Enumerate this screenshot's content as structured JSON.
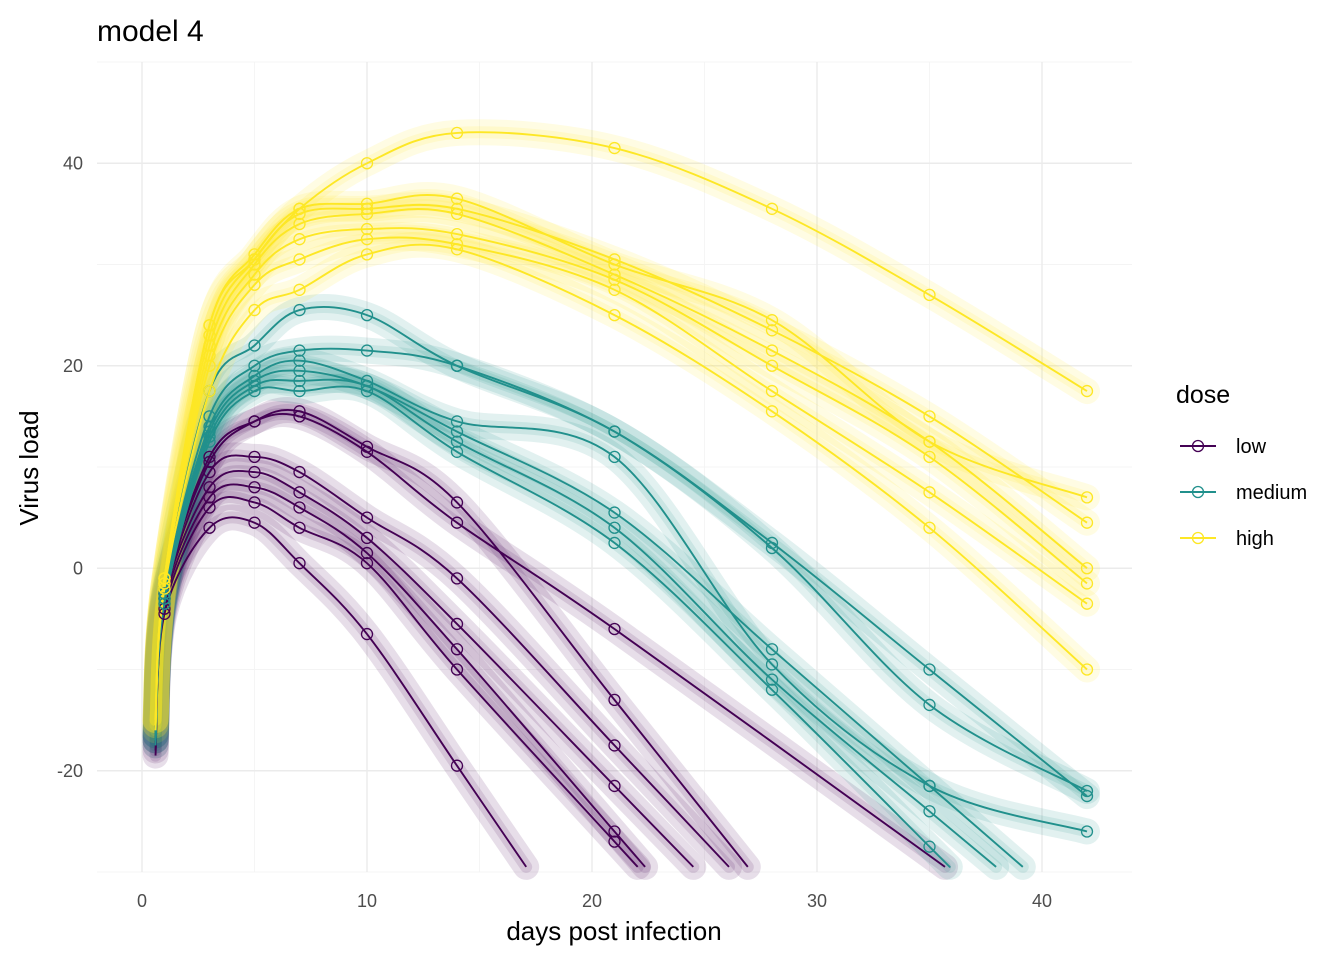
{
  "chart_data": {
    "type": "line",
    "title": "model 4",
    "xlabel": "days post infection",
    "ylabel": "Virus load",
    "xlim": [
      -2,
      44
    ],
    "ylim": [
      -30,
      50
    ],
    "x_ticks": [
      0,
      10,
      20,
      30,
      40
    ],
    "x_tick_labels": [
      "0",
      "10",
      "20",
      "30",
      "40"
    ],
    "y_ticks": [
      -20,
      0,
      20,
      40
    ],
    "y_tick_labels": [
      "-20",
      "0",
      "20",
      "40"
    ],
    "grid": true,
    "legend": {
      "title": "dose",
      "placement": "right"
    },
    "observation_days": [
      1,
      3,
      5,
      7,
      10,
      14,
      21,
      28,
      35,
      42
    ],
    "series": [
      {
        "name": "low",
        "color": "#440154",
        "curves": [
          {
            "values": [
              -4.5,
              4.0,
              4.5,
              0.5,
              -6.5,
              -19.5,
              null,
              null,
              null,
              null
            ]
          },
          {
            "values": [
              -4.0,
              6.0,
              6.5,
              4.0,
              0.5,
              -10.0,
              -27.0,
              null,
              null,
              null
            ]
          },
          {
            "values": [
              -3.5,
              7.0,
              8.0,
              6.0,
              1.5,
              -8.0,
              -26.0,
              null,
              null,
              null
            ]
          },
          {
            "values": [
              -3.0,
              8.0,
              9.5,
              7.5,
              3.0,
              -5.5,
              -21.5,
              null,
              null,
              null
            ]
          },
          {
            "values": [
              -3.0,
              9.5,
              11.0,
              9.5,
              5.0,
              -1.0,
              -17.5,
              null,
              null,
              null
            ]
          },
          {
            "values": [
              -2.5,
              10.5,
              14.5,
              15.5,
              12.0,
              6.5,
              -13.0,
              null,
              null,
              null
            ]
          },
          {
            "values": [
              -2.5,
              11.0,
              14.5,
              15.0,
              11.5,
              4.5,
              -6.0,
              null,
              null,
              null
            ]
          }
        ]
      },
      {
        "name": "medium",
        "color": "#21908C",
        "curves": [
          {
            "values": [
              -3.5,
              12.5,
              17.5,
              17.5,
              17.5,
              11.5,
              2.5,
              -12.0,
              -27.5,
              null
            ]
          },
          {
            "values": [
              -3.0,
              13.0,
              18.0,
              18.5,
              18.0,
              12.5,
              4.0,
              -11.0,
              -24.0,
              null
            ]
          },
          {
            "values": [
              -3.0,
              13.5,
              18.5,
              19.5,
              18.0,
              13.5,
              5.5,
              -8.0,
              -21.5,
              null
            ]
          },
          {
            "values": [
              -2.5,
              14.0,
              19.0,
              20.5,
              18.5,
              14.5,
              11.0,
              -9.5,
              -21.5,
              -26.0
            ]
          },
          {
            "values": [
              -2.5,
              15.0,
              20.0,
              21.5,
              21.5,
              20.0,
              13.5,
              2.5,
              -10.0,
              -22.5
            ]
          },
          {
            "values": [
              -2.0,
              17.5,
              22.0,
              25.5,
              25.0,
              20.0,
              13.5,
              2.0,
              -13.5,
              -22.0
            ]
          }
        ]
      },
      {
        "name": "high",
        "color": "#FDE725",
        "curves": [
          {
            "values": [
              -2.0,
              17.5,
              25.5,
              27.5,
              31.0,
              31.5,
              25.0,
              15.5,
              4.0,
              -10.0
            ]
          },
          {
            "values": [
              -1.5,
              20.0,
              28.0,
              30.5,
              32.5,
              32.0,
              27.5,
              17.5,
              7.5,
              -3.5
            ]
          },
          {
            "values": [
              -1.5,
              21.0,
              29.0,
              32.5,
              33.5,
              33.0,
              28.5,
              20.0,
              11.0,
              -1.5
            ]
          },
          {
            "values": [
              -1.0,
              22.0,
              30.0,
              34.0,
              35.0,
              35.0,
              29.0,
              21.5,
              12.5,
              0.0
            ]
          },
          {
            "values": [
              -1.0,
              23.0,
              30.5,
              35.0,
              35.5,
              35.5,
              30.5,
              23.5,
              15.0,
              4.5
            ]
          },
          {
            "values": [
              -1.0,
              24.0,
              31.0,
              35.5,
              36.0,
              36.5,
              30.0,
              24.5,
              12.5,
              7.0
            ]
          },
          {
            "values": [
              -1.0,
              24.0,
              30.5,
              35.5,
              40.0,
              43.0,
              41.5,
              35.5,
              27.0,
              17.5
            ]
          }
        ]
      }
    ]
  }
}
